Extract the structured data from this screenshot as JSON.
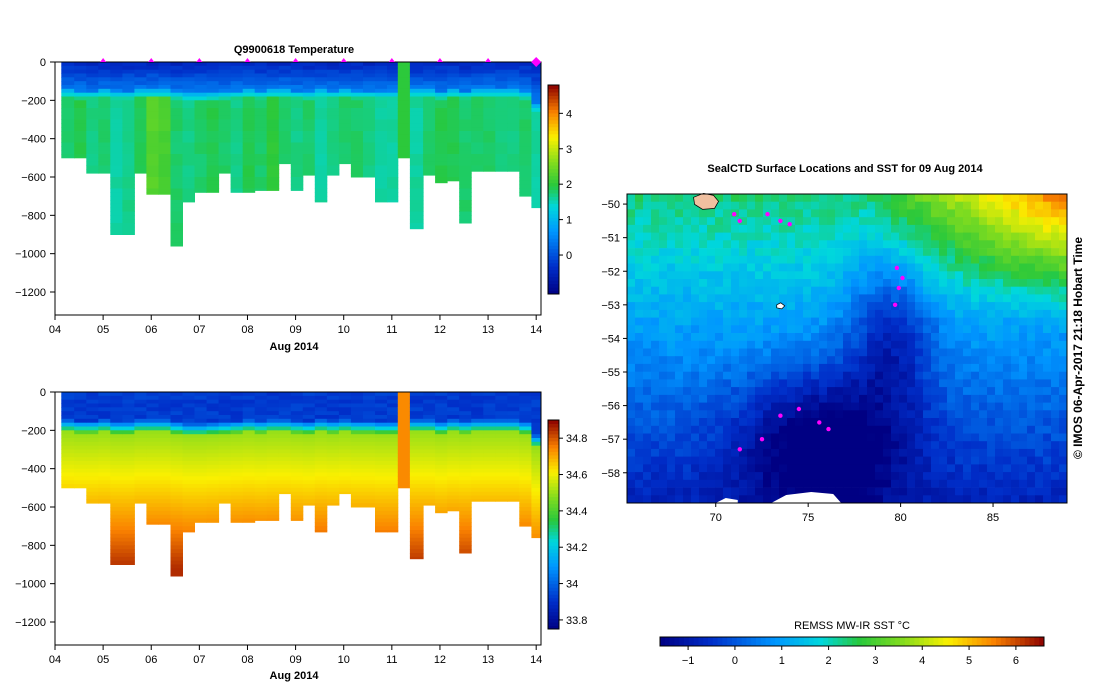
{
  "chart_data": [
    {
      "id": "temperature",
      "type": "heatmap",
      "title": "Q9900618  Temperature",
      "xlabel": "Aug 2014",
      "x_tick_labels": [
        "04",
        "05",
        "06",
        "07",
        "08",
        "09",
        "10",
        "11",
        "12",
        "13",
        "14"
      ],
      "y_tick_labels": [
        "0",
        "−200",
        "−400",
        "−600",
        "−800",
        "−1000",
        "−1200"
      ],
      "y_ticks": [
        0,
        -200,
        -400,
        -600,
        -800,
        -1000,
        -1200
      ],
      "xlim": [
        4.0,
        14.1
      ],
      "ylim": [
        -1320,
        0
      ],
      "colorbar_ticks": [
        0,
        1,
        2,
        3,
        4
      ],
      "colorbar_range": [
        -1.1,
        4.8
      ],
      "profile_times": [
        4.3,
        4.5,
        4.8,
        5.0,
        5.3,
        5.5,
        5.8,
        6.0,
        6.3,
        6.5,
        6.8,
        7.0,
        7.3,
        7.5,
        7.8,
        8.0,
        8.3,
        8.5,
        8.8,
        9.0,
        9.3,
        9.5,
        9.8,
        10.0,
        10.3,
        10.5,
        10.8,
        11.0,
        11.25,
        11.5,
        11.8,
        12.0,
        12.3,
        12.5,
        12.8,
        13.0,
        13.3,
        13.5,
        13.8,
        14.0
      ],
      "profile_depths": [
        500,
        500,
        580,
        580,
        900,
        900,
        580,
        690,
        690,
        960,
        730,
        680,
        680,
        580,
        680,
        680,
        670,
        670,
        530,
        670,
        590,
        730,
        590,
        530,
        600,
        600,
        730,
        730,
        500,
        870,
        590,
        630,
        620,
        840,
        570,
        570,
        570,
        570,
        700,
        760
      ],
      "cold_layer_depth": [
        150,
        155,
        155,
        150,
        160,
        160,
        150,
        150,
        150,
        160,
        170,
        170,
        165,
        160,
        155,
        150,
        155,
        150,
        150,
        155,
        160,
        150,
        155,
        150,
        155,
        155,
        160,
        160,
        0,
        150,
        150,
        160,
        150,
        155,
        150,
        150,
        150,
        150,
        160,
        230
      ],
      "deep_values": [
        1.8,
        1.9,
        1.7,
        1.8,
        1.6,
        1.7,
        1.9,
        2.3,
        2.2,
        1.8,
        1.7,
        1.8,
        1.9,
        1.8,
        1.7,
        1.9,
        1.8,
        2.0,
        1.8,
        1.7,
        1.8,
        1.6,
        1.7,
        1.8,
        1.8,
        1.7,
        1.6,
        1.6,
        1.6,
        1.6,
        1.8,
        1.9,
        1.9,
        1.8,
        1.8,
        1.8,
        1.7,
        1.7,
        1.8,
        1.6
      ],
      "surface_markers_at": [
        5,
        6,
        7,
        8,
        9,
        10,
        11,
        12,
        13,
        14
      ]
    },
    {
      "id": "salinity",
      "type": "heatmap",
      "title": "",
      "xlabel": "Aug 2014",
      "x_tick_labels": [
        "04",
        "05",
        "06",
        "07",
        "08",
        "09",
        "10",
        "11",
        "12",
        "13",
        "14"
      ],
      "y_tick_labels": [
        "0",
        "−200",
        "−400",
        "−600",
        "−800",
        "−1000",
        "−1200"
      ],
      "y_ticks": [
        0,
        -200,
        -400,
        -600,
        -800,
        -1000,
        -1200
      ],
      "xlim": [
        4.0,
        14.1
      ],
      "ylim": [
        -1320,
        0
      ],
      "colorbar_ticks": [
        33.8,
        34.0,
        34.2,
        34.4,
        34.6,
        34.8
      ],
      "colorbar_tick_labels": [
        "33.8",
        "34",
        "34.2",
        "34.4",
        "34.6",
        "34.8"
      ],
      "colorbar_range": [
        33.75,
        34.9
      ],
      "surface_salinity": 33.9,
      "deep_salinity": 34.75
    },
    {
      "id": "sst_map",
      "type": "heatmap",
      "title": "SealCTD Surface Locations and SST for 09 Aug 2014",
      "xlabel": "",
      "ylabel": "",
      "x_tick_labels": [
        "70",
        "75",
        "80",
        "85"
      ],
      "x_ticks": [
        70,
        75,
        80,
        85
      ],
      "y_tick_labels": [
        "−50",
        "−51",
        "−52",
        "−53",
        "−54",
        "−55",
        "−56",
        "−57",
        "−58"
      ],
      "y_ticks": [
        -50,
        -51,
        -52,
        -53,
        -54,
        -55,
        -56,
        -57,
        -58
      ],
      "xlim": [
        65.2,
        89.0
      ],
      "ylim": [
        -58.9,
        -49.7
      ],
      "seal_track_color": "#ff00ff",
      "seal_positions": [
        [
          71.0,
          -50.3
        ],
        [
          71.3,
          -50.5
        ],
        [
          72.8,
          -50.3
        ],
        [
          73.5,
          -50.5
        ],
        [
          74.0,
          -50.6
        ],
        [
          79.8,
          -51.9
        ],
        [
          80.1,
          -52.2
        ],
        [
          79.9,
          -52.5
        ],
        [
          79.7,
          -53.0
        ],
        [
          74.5,
          -56.1
        ],
        [
          73.5,
          -56.3
        ],
        [
          75.6,
          -56.5
        ],
        [
          76.1,
          -56.7
        ],
        [
          72.5,
          -57.0
        ],
        [
          71.3,
          -57.3
        ]
      ]
    },
    {
      "id": "sst_colorbar",
      "type": "colorbar",
      "title": "REMSS MW-IR SST °C",
      "tick_labels": [
        "−1",
        "0",
        "1",
        "2",
        "3",
        "4",
        "5",
        "6"
      ],
      "ticks": [
        -1,
        0,
        1,
        2,
        3,
        4,
        5,
        6
      ],
      "range": [
        -1.6,
        6.6
      ]
    }
  ],
  "credit": "© IMOS 06-Apr-2017 21:18 Hobart Time"
}
